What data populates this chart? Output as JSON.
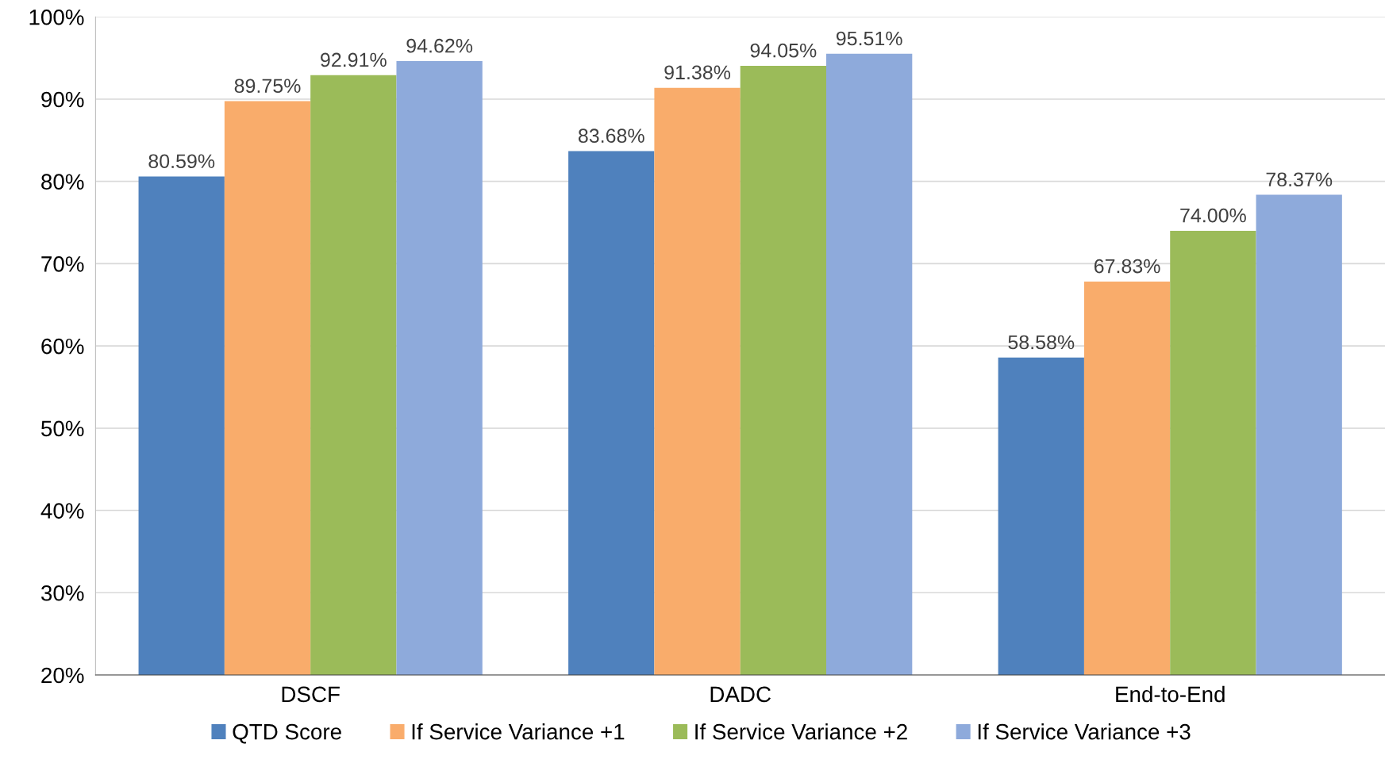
{
  "chart_data": {
    "type": "bar",
    "categories": [
      "DSCF",
      "DADC",
      "End-to-End"
    ],
    "series": [
      {
        "name": "QTD Score",
        "color": "#4f81bd",
        "values": [
          80.59,
          83.68,
          58.58
        ],
        "value_labels": [
          "80.59%",
          "83.68%",
          "58.58%"
        ]
      },
      {
        "name": "If Service Variance +1",
        "color": "#f9ac6b",
        "values": [
          89.75,
          91.38,
          67.83
        ],
        "value_labels": [
          "89.75%",
          "91.38%",
          "67.83%"
        ]
      },
      {
        "name": "If Service Variance +2",
        "color": "#9bbb59",
        "values": [
          92.91,
          94.05,
          74.0
        ],
        "value_labels": [
          "92.91%",
          "94.05%",
          "74.00%"
        ]
      },
      {
        "name": "If Service Variance +3",
        "color": "#8eaadb",
        "values": [
          94.62,
          95.51,
          78.37
        ],
        "value_labels": [
          "94.62%",
          "95.51%",
          "78.37%"
        ]
      }
    ],
    "ylim": [
      20,
      100
    ],
    "yticks": [
      {
        "value": 20,
        "label": "20%"
      },
      {
        "value": 30,
        "label": "30%"
      },
      {
        "value": 40,
        "label": "40%"
      },
      {
        "value": 50,
        "label": "50%"
      },
      {
        "value": 60,
        "label": "60%"
      },
      {
        "value": 70,
        "label": "70%"
      },
      {
        "value": 80,
        "label": "80%"
      },
      {
        "value": 90,
        "label": "90%"
      },
      {
        "value": 100,
        "label": "100%"
      }
    ],
    "grid": "y",
    "legend": "bottom"
  }
}
